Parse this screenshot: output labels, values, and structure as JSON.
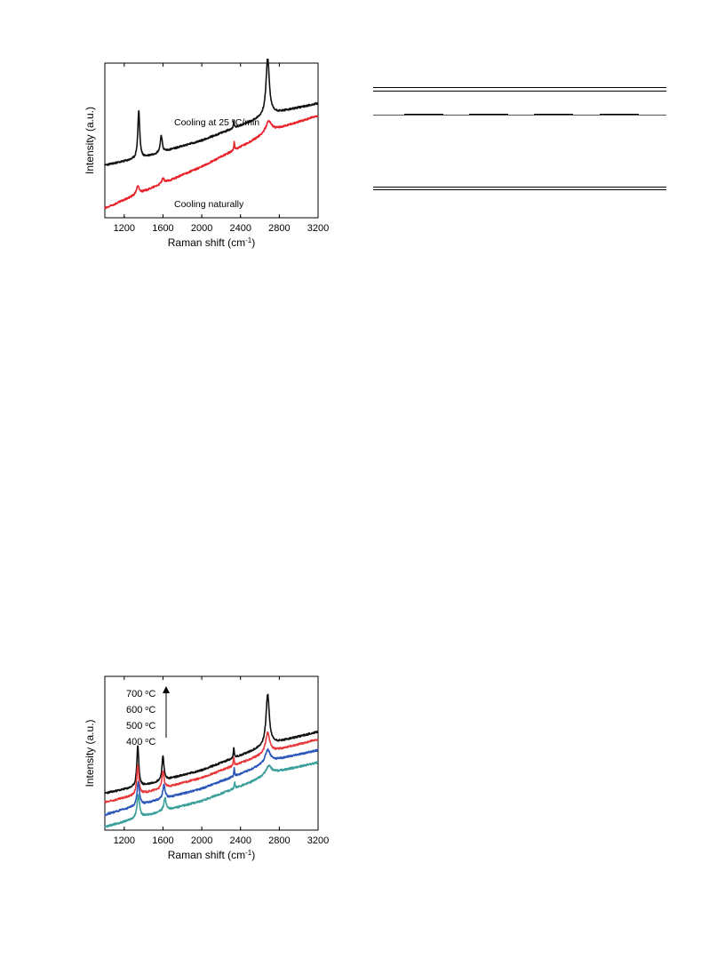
{
  "chart_data": [
    {
      "type": "line",
      "xlabel": "Raman shift (cm",
      "xlabel_sup": "-1",
      "xlabel_end": ")",
      "ylabel": "Intensity (a.u.)",
      "xlim": [
        1000,
        3200
      ],
      "ylim": [
        0,
        1
      ],
      "xticks": [
        1200,
        1600,
        2000,
        2400,
        2800,
        3200
      ],
      "grid": false,
      "series": [
        {
          "name": "Cooling at 25 °C/min",
          "name_parts": [
            "Cooling at 25 ",
            "o",
            "C/min"
          ],
          "color": "#111111",
          "baseline": [
            [
              1000,
              0.34
            ],
            [
              1400,
              0.39
            ],
            [
              2000,
              0.5
            ],
            [
              2500,
              0.62
            ],
            [
              2700,
              0.67
            ],
            [
              3200,
              0.74
            ]
          ],
          "peaks": [
            {
              "x": 1350,
              "height": 0.31,
              "width": 12
            },
            {
              "x": 1582,
              "height": 0.11,
              "width": 12
            },
            {
              "x": 2330,
              "height": 0.05,
              "width": 5
            },
            {
              "x": 2680,
              "height": 0.37,
              "width": 20
            }
          ]
        },
        {
          "name": "Cooling naturally",
          "color": "#e8212a",
          "baseline": [
            [
              1000,
              0.06
            ],
            [
              1400,
              0.17
            ],
            [
              2000,
              0.33
            ],
            [
              2500,
              0.49
            ],
            [
              2700,
              0.56
            ],
            [
              3200,
              0.66
            ]
          ],
          "peaks": [
            {
              "x": 1340,
              "height": 0.05,
              "width": 18
            },
            {
              "x": 1600,
              "height": 0.03,
              "width": 15
            },
            {
              "x": 2335,
              "height": 0.05,
              "width": 5
            },
            {
              "x": 2690,
              "height": 0.07,
              "width": 35
            }
          ]
        }
      ]
    },
    {
      "type": "line",
      "xlabel": "Raman shift (cm",
      "xlabel_sup": "-1",
      "xlabel_end": ")",
      "ylabel": "Intensity (a.u.)",
      "xlim": [
        1000,
        3200
      ],
      "ylim": [
        0,
        1
      ],
      "xticks": [
        1200,
        1600,
        2000,
        2400,
        2800,
        3200
      ],
      "grid": false,
      "legend": [
        {
          "value": "700 ",
          "sup": "o",
          "unit": "C"
        },
        {
          "value": "600 ",
          "sup": "o",
          "unit": "C"
        },
        {
          "value": "500 ",
          "sup": "o",
          "unit": "C"
        },
        {
          "value": "400 ",
          "sup": "o",
          "unit": "C"
        }
      ],
      "series": [
        {
          "color": "#111111",
          "baseline": [
            [
              1000,
              0.24
            ],
            [
              1400,
              0.29
            ],
            [
              2000,
              0.39
            ],
            [
              2500,
              0.51
            ],
            [
              2700,
              0.56
            ],
            [
              3200,
              0.64
            ]
          ],
          "peaks": [
            {
              "x": 1340,
              "height": 0.27,
              "width": 12
            },
            {
              "x": 1600,
              "height": 0.16,
              "width": 12
            },
            {
              "x": 2330,
              "height": 0.07,
              "width": 5
            },
            {
              "x": 2680,
              "height": 0.33,
              "width": 20
            }
          ]
        },
        {
          "color": "#e8383b",
          "baseline": [
            [
              1000,
              0.18
            ],
            [
              1400,
              0.24
            ],
            [
              2000,
              0.34
            ],
            [
              2500,
              0.46
            ],
            [
              2700,
              0.51
            ],
            [
              3200,
              0.59
            ]
          ],
          "peaks": [
            {
              "x": 1340,
              "height": 0.19,
              "width": 13
            },
            {
              "x": 1600,
              "height": 0.11,
              "width": 13
            },
            {
              "x": 2330,
              "height": 0.06,
              "width": 5
            },
            {
              "x": 2680,
              "height": 0.13,
              "width": 25
            }
          ]
        },
        {
          "color": "#2a57b8",
          "baseline": [
            [
              1000,
              0.1
            ],
            [
              1400,
              0.17
            ],
            [
              2000,
              0.27
            ],
            [
              2500,
              0.39
            ],
            [
              2700,
              0.45
            ],
            [
              3200,
              0.52
            ]
          ],
          "peaks": [
            {
              "x": 1345,
              "height": 0.16,
              "width": 14
            },
            {
              "x": 1610,
              "height": 0.09,
              "width": 14
            },
            {
              "x": 2335,
              "height": 0.05,
              "width": 5
            },
            {
              "x": 2680,
              "height": 0.08,
              "width": 30
            }
          ]
        },
        {
          "color": "#3a9e9a",
          "baseline": [
            [
              1000,
              0.02
            ],
            [
              1400,
              0.09
            ],
            [
              2000,
              0.19
            ],
            [
              2500,
              0.31
            ],
            [
              2700,
              0.37
            ],
            [
              3200,
              0.44
            ]
          ],
          "peaks": [
            {
              "x": 1345,
              "height": 0.15,
              "width": 15
            },
            {
              "x": 1620,
              "height": 0.08,
              "width": 15
            },
            {
              "x": 2340,
              "height": 0.04,
              "width": 5
            },
            {
              "x": 2690,
              "height": 0.05,
              "width": 35
            }
          ]
        }
      ]
    }
  ]
}
